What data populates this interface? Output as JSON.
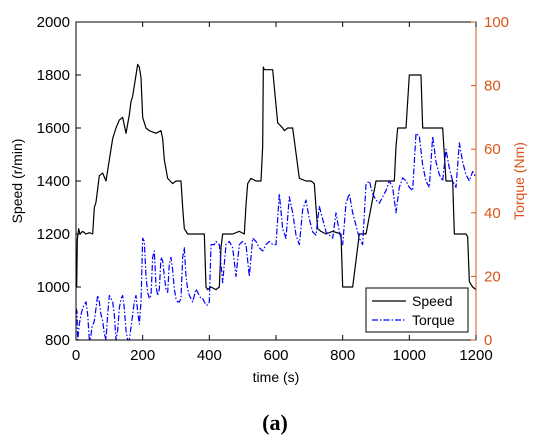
{
  "caption": "(a)",
  "chart_data": {
    "type": "line",
    "xlabel": "time (s)",
    "ylabel_left": "Speed (r/min)",
    "ylabel_right": "Torque (Nm)",
    "xlim": [
      0,
      1200
    ],
    "ylim_left": [
      800,
      2000
    ],
    "ylim_right": [
      0,
      100
    ],
    "x_ticks": [
      "0",
      "200",
      "400",
      "600",
      "800",
      "1000",
      "1200"
    ],
    "y_left_ticks": [
      "800",
      "1000",
      "1200",
      "1400",
      "1600",
      "1800",
      "2000"
    ],
    "y_right_ticks": [
      "0",
      "20",
      "40",
      "60",
      "80",
      "100"
    ],
    "grid": false,
    "legend": "bottom-right",
    "colors": {
      "speed": "#000000",
      "torque": "#0000ff",
      "right_axis": "#d95319"
    },
    "series": [
      {
        "name": "Speed",
        "axis": "left",
        "style": "solid",
        "x": [
          0,
          2,
          4,
          8,
          12,
          20,
          30,
          40,
          50,
          55,
          60,
          70,
          80,
          90,
          100,
          110,
          120,
          130,
          140,
          150,
          160,
          165,
          170,
          180,
          185,
          190,
          195,
          198,
          200,
          210,
          220,
          240,
          255,
          260,
          265,
          275,
          290,
          300,
          315,
          320,
          325,
          335,
          350,
          370,
          385,
          390,
          395,
          405,
          420,
          430,
          435,
          440,
          450,
          470,
          490,
          505,
          510,
          515,
          525,
          540,
          555,
          560,
          562,
          565,
          575,
          590,
          605,
          620,
          625,
          635,
          650,
          670,
          690,
          705,
          715,
          720,
          725,
          735,
          750,
          770,
          795,
          800,
          805,
          815,
          830,
          850,
          870,
          900,
          920,
          955,
          960,
          965,
          975,
          990,
          1000,
          1010,
          1020,
          1035,
          1040,
          1045,
          1060,
          1080,
          1100,
          1110,
          1125,
          1130,
          1135,
          1150,
          1170,
          1175,
          1180,
          1185,
          1190,
          1200
        ],
        "y": [
          1000,
          1000,
          1180,
          1220,
          1200,
          1210,
          1200,
          1205,
          1200,
          1300,
          1320,
          1420,
          1430,
          1400,
          1480,
          1560,
          1600,
          1630,
          1640,
          1580,
          1650,
          1700,
          1720,
          1800,
          1840,
          1830,
          1790,
          1700,
          1640,
          1600,
          1590,
          1580,
          1590,
          1560,
          1480,
          1410,
          1390,
          1400,
          1400,
          1300,
          1220,
          1200,
          1200,
          1200,
          1200,
          1000,
          990,
          1000,
          990,
          1000,
          1150,
          1200,
          1200,
          1200,
          1210,
          1200,
          1310,
          1390,
          1410,
          1400,
          1400,
          1530,
          1830,
          1820,
          1820,
          1820,
          1620,
          1600,
          1590,
          1600,
          1600,
          1410,
          1400,
          1400,
          1390,
          1300,
          1220,
          1210,
          1200,
          1210,
          1200,
          1000,
          1000,
          1000,
          1000,
          1200,
          1200,
          1400,
          1400,
          1400,
          1530,
          1600,
          1600,
          1600,
          1800,
          1800,
          1800,
          1800,
          1600,
          1600,
          1600,
          1600,
          1600,
          1400,
          1400,
          1400,
          1200,
          1200,
          1200,
          1190,
          1020,
          1010,
          1000,
          990
        ]
      },
      {
        "name": "Torque",
        "axis": "right",
        "style": "dash-dot",
        "x": [
          0,
          3,
          5,
          10,
          15,
          20,
          25,
          30,
          35,
          40,
          43,
          48,
          55,
          60,
          65,
          70,
          75,
          80,
          85,
          90,
          95,
          100,
          105,
          110,
          115,
          120,
          125,
          130,
          135,
          140,
          145,
          150,
          155,
          160,
          165,
          170,
          175,
          180,
          185,
          190,
          195,
          200,
          205,
          210,
          215,
          220,
          225,
          230,
          235,
          240,
          245,
          250,
          255,
          260,
          265,
          270,
          275,
          280,
          285,
          290,
          295,
          300,
          305,
          310,
          315,
          320,
          325,
          330,
          335,
          340,
          345,
          350,
          355,
          360,
          365,
          370,
          375,
          380,
          385,
          390,
          395,
          400,
          405,
          410,
          415,
          420,
          430,
          440,
          450,
          460,
          470,
          480,
          490,
          500,
          510,
          520,
          530,
          540,
          550,
          560,
          570,
          580,
          590,
          600,
          610,
          620,
          630,
          640,
          650,
          660,
          670,
          680,
          690,
          700,
          710,
          720,
          730,
          740,
          750,
          760,
          770,
          780,
          790,
          800,
          810,
          820,
          830,
          840,
          850,
          860,
          870,
          880,
          890,
          900,
          910,
          920,
          930,
          940,
          950,
          960,
          970,
          980,
          990,
          1000,
          1010,
          1020,
          1030,
          1040,
          1050,
          1060,
          1070,
          1080,
          1090,
          1100,
          1110,
          1120,
          1130,
          1140,
          1150,
          1160,
          1170,
          1180,
          1190,
          1200
        ],
        "y": [
          10,
          9,
          0,
          5,
          8,
          10,
          11,
          12,
          8,
          0,
          0,
          4,
          6,
          10,
          14,
          12,
          8,
          6,
          2,
          0,
          8,
          14,
          13,
          12,
          8,
          0,
          3,
          10,
          13,
          14,
          10,
          3,
          0,
          0,
          4,
          8,
          12,
          14,
          9,
          5,
          12,
          32,
          31,
          20,
          15,
          13,
          14,
          26,
          28,
          17,
          14,
          16,
          26,
          25,
          20,
          16,
          15,
          24,
          26,
          22,
          16,
          13,
          12,
          12,
          13,
          26,
          29,
          20,
          16,
          14,
          13,
          12,
          14,
          16,
          15,
          14,
          13,
          13,
          12,
          11,
          11,
          12,
          30,
          30,
          30,
          31,
          30,
          18,
          30,
          31,
          29,
          20,
          30,
          31,
          30,
          20,
          32,
          31,
          29,
          28,
          30,
          31,
          30,
          30,
          46,
          35,
          32,
          45,
          40,
          33,
          30,
          41,
          44,
          38,
          34,
          33,
          42,
          38,
          34,
          33,
          32,
          40,
          34,
          30,
          43,
          46,
          40,
          36,
          32,
          30,
          49,
          50,
          46,
          44,
          43,
          45,
          47,
          50,
          48,
          40,
          48,
          51,
          50,
          48,
          47,
          65,
          64,
          55,
          50,
          48,
          64,
          56,
          52,
          50,
          60,
          54,
          50,
          48,
          62,
          56,
          52,
          50,
          53,
          51
        ]
      }
    ]
  }
}
